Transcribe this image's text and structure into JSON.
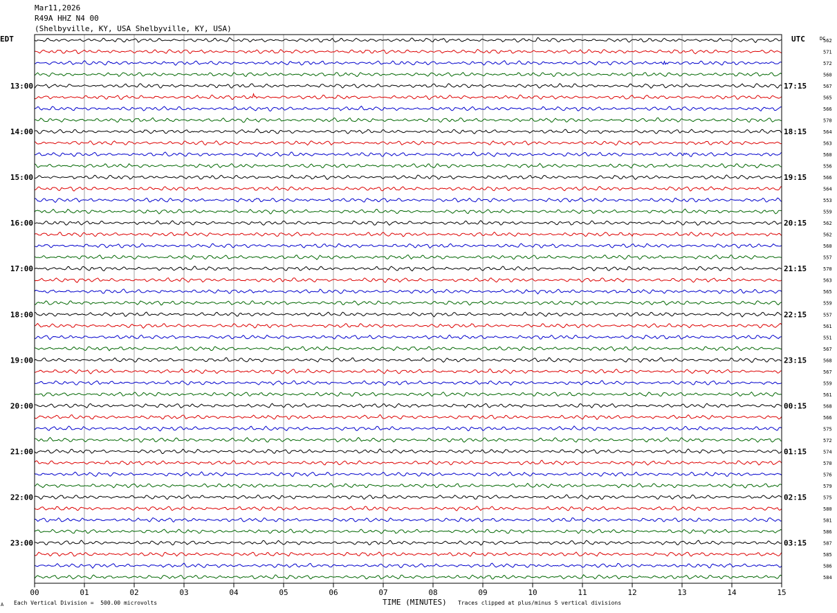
{
  "header": {
    "date": "Mar11,2026",
    "station": "R49A HHZ N4 00",
    "location": "(Shelbyville, KY, USA Shelbyville, KY, USA)"
  },
  "left_axis_label": "EDT",
  "right_axis_label": "UTC",
  "dc_label": "DC",
  "footer": {
    "scale_note": "Each Vertical Division =  500.00 microvolts",
    "clip_note": "Traces clipped at plus/minus 5 vertical divisions",
    "corner_mark": "A"
  },
  "colors": {
    "trace_cycle": [
      "#000000",
      "#dd0000",
      "#0000cc",
      "#006600"
    ],
    "grid": "#8c8c8c",
    "frame": "#000000"
  },
  "chart_data": {
    "type": "line",
    "title": "",
    "xlabel": "TIME (MINUTES)",
    "ylabel": "",
    "xlim": [
      0,
      15
    ],
    "x_ticks": [
      "00",
      "01",
      "02",
      "03",
      "04",
      "05",
      "06",
      "07",
      "08",
      "09",
      "10",
      "11",
      "12",
      "13",
      "14",
      "15"
    ],
    "traces_per_hour": 4,
    "trace_count": 48,
    "left_hour_labels": [
      "13:00",
      "14:00",
      "15:00",
      "16:00",
      "17:00",
      "18:00",
      "19:00",
      "20:00",
      "21:00",
      "22:00",
      "23:00"
    ],
    "right_hour_labels": [
      "17:15",
      "18:15",
      "19:15",
      "20:15",
      "21:15",
      "22:15",
      "23:15",
      "00:15",
      "01:15",
      "02:15",
      "03:15"
    ],
    "hour_label_first_trace": 4,
    "dc_offsets": [
      562,
      571,
      572,
      560,
      567,
      565,
      566,
      570,
      564,
      563,
      560,
      556,
      566,
      564,
      553,
      559,
      562,
      562,
      560,
      557,
      570,
      563,
      565,
      559,
      557,
      561,
      551,
      567,
      568,
      567,
      559,
      561,
      568,
      566,
      575,
      572,
      574,
      570,
      576,
      579,
      575,
      580,
      581,
      586,
      587,
      585,
      586,
      584
    ],
    "events": [
      {
        "trace": 5,
        "minute": 4.4,
        "amplitude": 3.0
      },
      {
        "trace": 2,
        "minute": 12.65,
        "amplitude": 2.4
      },
      {
        "trace": 10,
        "minute": 13.05,
        "amplitude": 1.3
      },
      {
        "trace": 17,
        "minute": 12.0,
        "amplitude": 1.4
      }
    ]
  }
}
